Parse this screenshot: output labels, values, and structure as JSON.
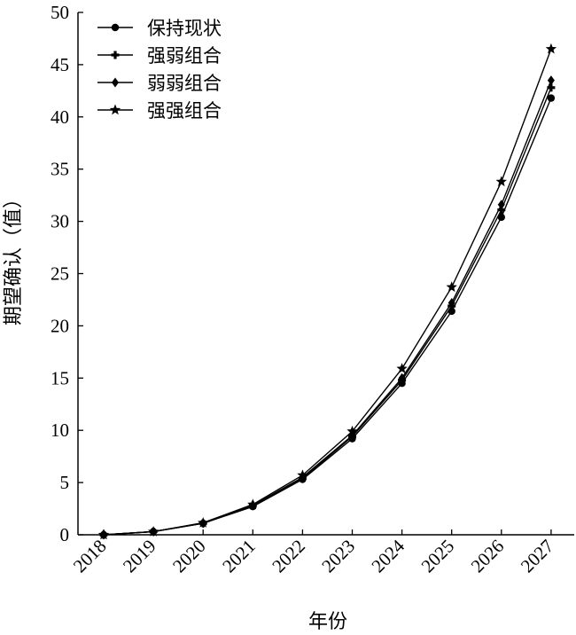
{
  "chart_data": {
    "type": "line",
    "xlabel": "年份",
    "ylabel": "期望确认（值）",
    "ylim": [
      0,
      50
    ],
    "yticks": [
      0,
      5,
      10,
      15,
      20,
      25,
      30,
      35,
      40,
      45,
      50
    ],
    "categories": [
      "2018",
      "2019",
      "2020",
      "2021",
      "2022",
      "2023",
      "2024",
      "2025",
      "2026",
      "2027"
    ],
    "grid": false,
    "legend_position": "top-left",
    "series": [
      {
        "name": "保持现状",
        "marker": "circle",
        "values": [
          0,
          0.3,
          1.1,
          2.7,
          5.3,
          9.2,
          14.5,
          21.4,
          30.4,
          41.8
        ]
      },
      {
        "name": "强弱组合",
        "marker": "plus",
        "values": [
          0,
          0.3,
          1.1,
          2.8,
          5.4,
          9.4,
          14.8,
          21.9,
          31.1,
          42.8
        ]
      },
      {
        "name": "弱弱组合",
        "marker": "diamond",
        "values": [
          0,
          0.3,
          1.1,
          2.8,
          5.5,
          9.5,
          15.0,
          22.2,
          31.6,
          43.5
        ]
      },
      {
        "name": "强强组合",
        "marker": "star",
        "values": [
          0,
          0.3,
          1.15,
          2.9,
          5.7,
          9.9,
          15.9,
          23.7,
          33.8,
          46.5
        ]
      }
    ]
  }
}
